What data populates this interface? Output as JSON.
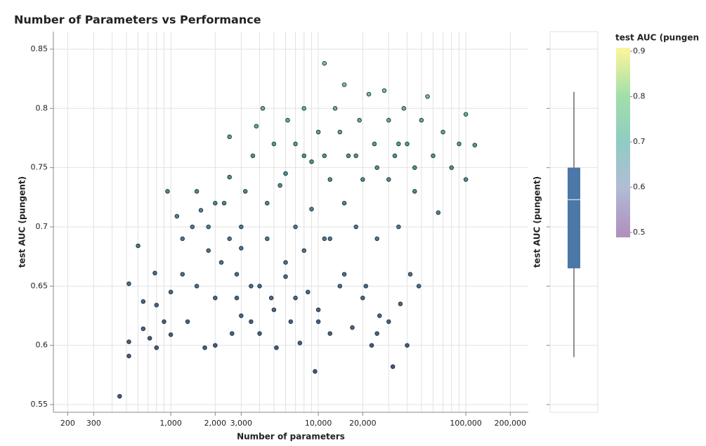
{
  "chart_data": {
    "type": "scatter",
    "title": "Number of Parameters vs Performance",
    "x_label": "Number of parameters",
    "y_label": "test AUC (pungent)",
    "log_x": true,
    "xlim": [
      160,
      265000
    ],
    "ylim": [
      0.5435,
      0.8648
    ],
    "xticks": [
      200,
      300,
      {
        "value": 1000,
        "label": "1,000"
      },
      {
        "value": 2000,
        "label": "2,000"
      },
      {
        "value": 3000,
        "label": "3,000"
      },
      {
        "value": 10000,
        "label": "10,000"
      },
      {
        "value": 20000,
        "label": "20,000"
      },
      {
        "value": 100000,
        "label": "100,000"
      },
      {
        "value": 200000,
        "label": "200,000"
      }
    ],
    "x_grid": [
      200,
      300,
      400,
      500,
      600,
      700,
      800,
      900,
      1000,
      2000,
      3000,
      4000,
      5000,
      6000,
      7000,
      8000,
      9000,
      10000,
      20000,
      30000,
      40000,
      50000,
      60000,
      70000,
      80000,
      90000,
      100000,
      200000
    ],
    "yticks": [
      0.55,
      0.6,
      0.65,
      0.7,
      0.75,
      0.8,
      0.85
    ],
    "grid": true,
    "point_color_scale": {
      "domain": [
        0.58,
        0.68,
        0.76,
        0.82
      ],
      "colors": [
        "#2b3a5c",
        "#2f5d74",
        "#2e8a73",
        "#5cbf82"
      ]
    },
    "x": [
      450,
      520,
      520,
      520,
      600,
      650,
      650,
      720,
      800,
      800,
      780,
      900,
      950,
      1000,
      1000,
      1100,
      1200,
      1200,
      1300,
      1400,
      1500,
      1600,
      1700,
      1800,
      2000,
      2000,
      2200,
      2300,
      2500,
      2500,
      2600,
      2800,
      3000,
      3000,
      3200,
      3500,
      3600,
      3800,
      4000,
      4200,
      4500,
      4800,
      5000,
      5200,
      5500,
      6000,
      6200,
      6500,
      7000,
      7500,
      8000,
      8000,
      8500,
      9000,
      9500,
      10000,
      10000,
      11000,
      11000,
      12000,
      12000,
      13000,
      14000,
      15000,
      15000,
      16000,
      17000,
      18000,
      19000,
      20000,
      21000,
      22000,
      23000,
      24000,
      25000,
      26000,
      28000,
      30000,
      32000,
      33000,
      35000,
      36000,
      38000,
      40000,
      42000,
      45000,
      48000,
      50000,
      55000,
      60000,
      65000,
      70000,
      80000,
      90000,
      100000,
      100000,
      115000,
      3000,
      4500,
      6000,
      7000,
      9000,
      11000,
      14000,
      18000,
      25000,
      30000,
      35000,
      45000,
      6000,
      8000,
      12000,
      15000,
      20000,
      25000,
      5000,
      4000,
      3500,
      2800,
      7000,
      10000,
      30000,
      40000,
      2000,
      2500,
      1500,
      1800
    ],
    "y": [
      0.557,
      0.603,
      0.591,
      0.652,
      0.684,
      0.637,
      0.614,
      0.606,
      0.598,
      0.634,
      0.661,
      0.62,
      0.73,
      0.645,
      0.609,
      0.709,
      0.69,
      0.66,
      0.62,
      0.7,
      0.65,
      0.714,
      0.598,
      0.68,
      0.6,
      0.64,
      0.67,
      0.72,
      0.742,
      0.776,
      0.61,
      0.66,
      0.625,
      0.7,
      0.73,
      0.65,
      0.76,
      0.785,
      0.61,
      0.8,
      0.69,
      0.64,
      0.77,
      0.598,
      0.735,
      0.658,
      0.79,
      0.62,
      0.7,
      0.602,
      0.8,
      0.76,
      0.645,
      0.715,
      0.578,
      0.78,
      0.63,
      0.838,
      0.69,
      0.74,
      0.61,
      0.8,
      0.65,
      0.82,
      0.72,
      0.76,
      0.615,
      0.7,
      0.79,
      0.74,
      0.65,
      0.812,
      0.6,
      0.77,
      0.69,
      0.625,
      0.815,
      0.74,
      0.582,
      0.76,
      0.7,
      0.635,
      0.8,
      0.77,
      0.66,
      0.73,
      0.65,
      0.79,
      0.81,
      0.76,
      0.712,
      0.78,
      0.75,
      0.77,
      0.795,
      0.74,
      0.769,
      0.682,
      0.72,
      0.745,
      0.77,
      0.755,
      0.76,
      0.78,
      0.76,
      0.75,
      0.79,
      0.77,
      0.75,
      0.67,
      0.68,
      0.69,
      0.66,
      0.64,
      0.61,
      0.63,
      0.65,
      0.62,
      0.64,
      0.64,
      0.62,
      0.62,
      0.6,
      0.72,
      0.69,
      0.73,
      0.7
    ],
    "boxplot": {
      "y_label": "test AUC (pungent)",
      "min": 0.59,
      "q1": 0.665,
      "median": 0.723,
      "q3": 0.75,
      "max": 0.814,
      "color": "#4c78a8"
    },
    "colorbar": {
      "title": "test AUC (pungen",
      "lim": [
        0.489,
        0.908
      ],
      "ticks": [
        0.5,
        0.6,
        0.7,
        0.8,
        0.9
      ],
      "colors": [
        "#a27fb4",
        "#a3b1cd",
        "#7cc3b8",
        "#8fd99b",
        "#f6f38a"
      ]
    }
  }
}
